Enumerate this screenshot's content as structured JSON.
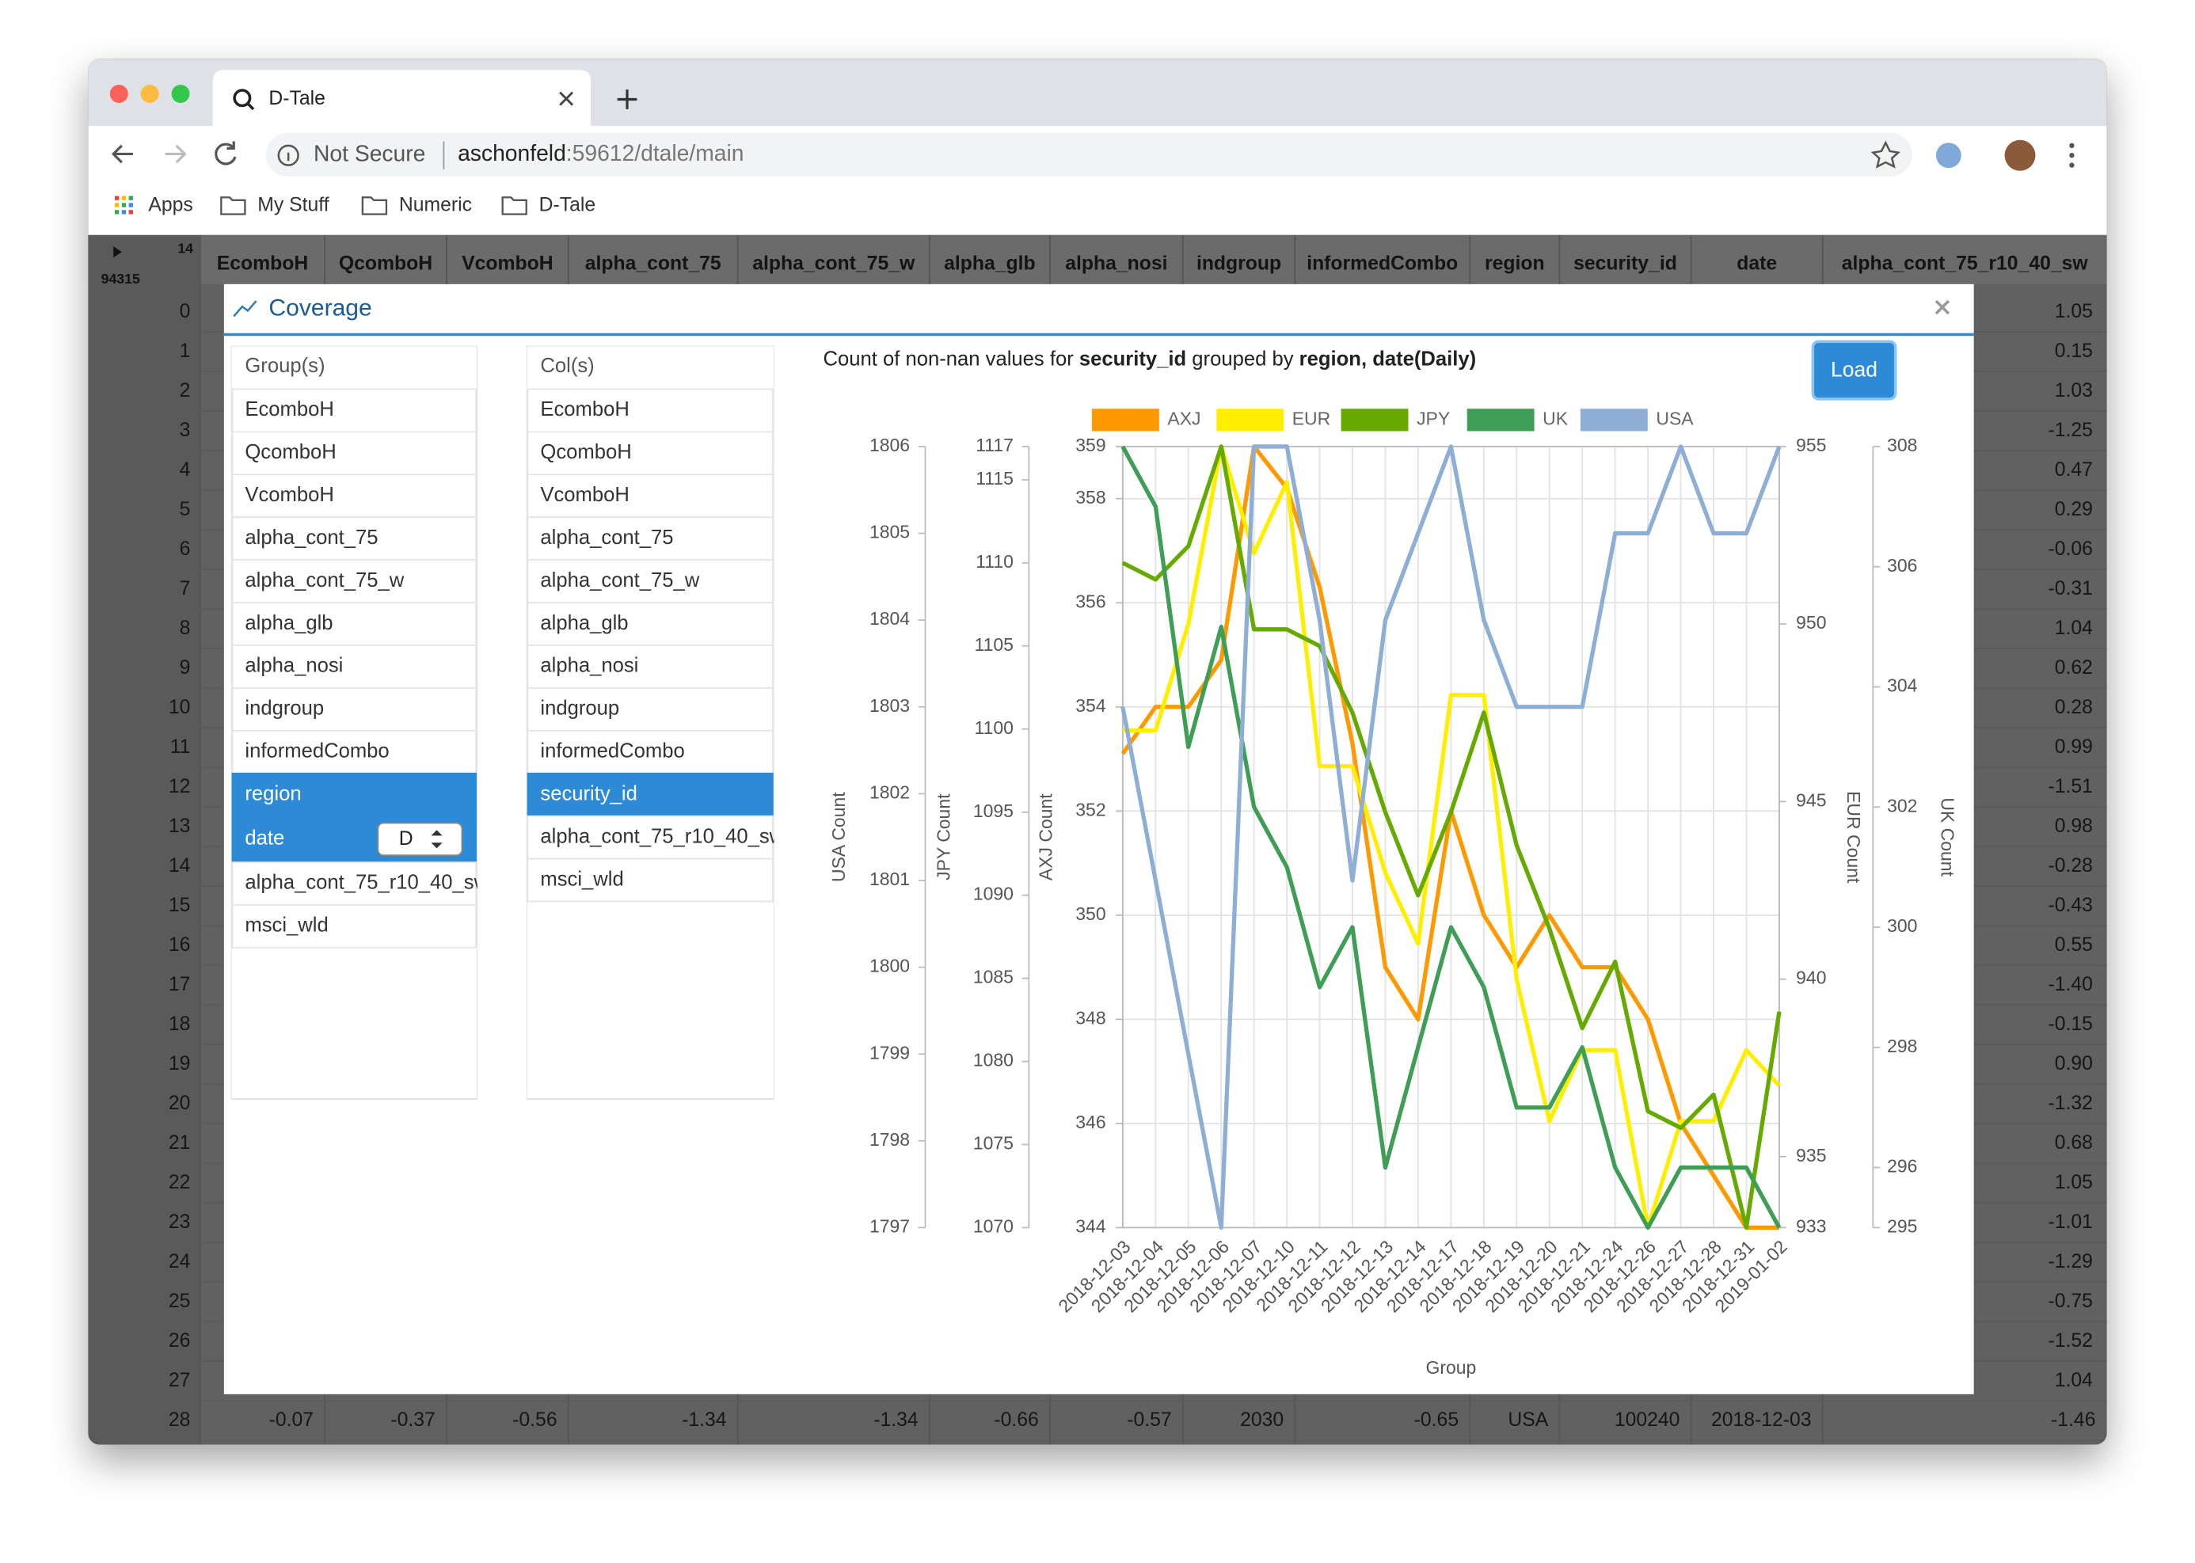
{
  "browser": {
    "tab_title": "D-Tale",
    "security": "Not Secure",
    "url_host": "aschonfeld",
    "url_rest": ":59612/dtale/main",
    "bookmarks": [
      "Apps",
      "My Stuff",
      "Numeric",
      "D-Tale"
    ]
  },
  "table": {
    "corner": [
      "14",
      "94315"
    ],
    "headers": [
      "EcomboH",
      "QcomboH",
      "VcomboH",
      "alpha_cont_75",
      "alpha_cont_75_w",
      "alpha_glb",
      "alpha_nosi",
      "indgroup",
      "informedCombo",
      "region",
      "security_id",
      "date",
      "alpha_cont_75_r10_40_sw"
    ],
    "row_index": [
      0,
      1,
      2,
      3,
      4,
      5,
      6,
      7,
      8,
      9,
      10,
      11,
      12,
      13,
      14,
      15,
      16,
      17,
      18,
      19,
      20,
      21,
      22,
      23,
      24,
      25,
      26,
      27,
      28
    ],
    "last_column": [
      "1.05",
      "0.15",
      "1.03",
      "-1.25",
      "0.47",
      "0.29",
      "-0.06",
      "-0.31",
      "1.04",
      "0.62",
      "0.28",
      "0.99",
      "-1.51",
      "0.98",
      "-0.28",
      "-0.43",
      "0.55",
      "-1.40",
      "-0.15",
      "0.90",
      "-1.32",
      "0.68",
      "1.05",
      "-1.01",
      "-1.29",
      "-0.75",
      "-1.52",
      "1.04"
    ],
    "last_row": [
      "-0.07",
      "-0.37",
      "-0.56",
      "-1.34",
      "-1.34",
      "-0.66",
      "-0.57",
      "2030",
      "-0.65",
      "USA",
      "100240",
      "2018-12-03",
      "-1.46"
    ]
  },
  "modal": {
    "title": "Coverage",
    "groups": {
      "header": "Group(s)",
      "items": [
        "EcomboH",
        "QcomboH",
        "VcomboH",
        "alpha_cont_75",
        "alpha_cont_75_w",
        "alpha_glb",
        "alpha_nosi",
        "indgroup",
        "informedCombo",
        "region",
        "date",
        "alpha_cont_75_r10_40_sw",
        "msci_wld"
      ],
      "selected": [
        "region",
        "date"
      ],
      "date_freq": "D"
    },
    "cols": {
      "header": "Col(s)",
      "items": [
        "EcomboH",
        "QcomboH",
        "VcomboH",
        "alpha_cont_75",
        "alpha_cont_75_w",
        "alpha_glb",
        "alpha_nosi",
        "indgroup",
        "informedCombo",
        "security_id",
        "alpha_cont_75_r10_40_sw",
        "msci_wld"
      ],
      "selected": [
        "security_id"
      ]
    },
    "chart_title": [
      "Count of non-nan values for ",
      "security_id",
      " grouped by ",
      "region, date(Daily)"
    ],
    "load_button": "Load",
    "chart": {
      "type": "line",
      "xlabel": "Group",
      "categories": [
        "2018-12-03",
        "2018-12-04",
        "2018-12-05",
        "2018-12-06",
        "2018-12-07",
        "2018-12-10",
        "2018-12-11",
        "2018-12-12",
        "2018-12-13",
        "2018-12-14",
        "2018-12-17",
        "2018-12-18",
        "2018-12-19",
        "2018-12-20",
        "2018-12-21",
        "2018-12-24",
        "2018-12-26",
        "2018-12-27",
        "2018-12-28",
        "2018-12-31",
        "2019-01-02"
      ],
      "axes": {
        "usa": {
          "label": "USA Count",
          "lim": [
            1797,
            1806
          ],
          "ticks": [
            1797,
            1798,
            1799,
            1800,
            1801,
            1802,
            1803,
            1804,
            1805,
            1806
          ]
        },
        "jpy": {
          "label": "JPY Count",
          "lim": [
            1070,
            1117
          ],
          "ticks": [
            1070,
            1075,
            1080,
            1085,
            1090,
            1095,
            1100,
            1105,
            1110,
            1115,
            1117
          ]
        },
        "axj": {
          "label": "AXJ Count",
          "lim": [
            344,
            359
          ],
          "ticks": [
            344,
            346,
            348,
            350,
            352,
            354,
            356,
            358,
            359
          ]
        },
        "eur": {
          "label": "EUR Count",
          "lim": [
            933,
            955
          ],
          "ticks": [
            933,
            935,
            940,
            945,
            950,
            955
          ]
        },
        "uk": {
          "label": "UK Count",
          "lim": [
            295,
            308
          ],
          "ticks": [
            295,
            296,
            298,
            300,
            302,
            304,
            306,
            308
          ]
        }
      },
      "grid": true,
      "legend": "top",
      "series": [
        {
          "name": "AXJ",
          "color": "#ff9900",
          "axis": "axj",
          "values": [
            353.1,
            354,
            354,
            354.9,
            359,
            358.2,
            356.3,
            353.3,
            349,
            348,
            352,
            350,
            349,
            350,
            349,
            349,
            348,
            346,
            345,
            344,
            344
          ]
        },
        {
          "name": "EUR",
          "color": "#ffee00",
          "axis": "eur",
          "values": [
            947,
            947,
            950,
            955,
            952,
            954,
            946,
            946,
            943,
            941,
            948,
            948,
            940,
            936,
            938,
            938,
            933,
            936,
            936,
            938,
            937
          ]
        },
        {
          "name": "JPY",
          "color": "#66aa00",
          "axis": "jpy",
          "values": [
            1110,
            1109,
            1111,
            1117,
            1106,
            1106,
            1105,
            1101,
            1095,
            1090,
            1095,
            1101,
            1093,
            1088,
            1082,
            1086,
            1077,
            1076,
            1078,
            1070,
            1083
          ]
        },
        {
          "name": "UK",
          "color": "#3f9e55",
          "axis": "uk",
          "values": [
            308,
            307,
            303,
            305,
            302,
            301,
            299,
            300,
            296,
            298,
            300,
            299,
            297,
            297,
            298,
            296,
            295,
            296,
            296,
            296,
            295
          ]
        },
        {
          "name": "USA",
          "color": "#8eaed6",
          "axis": "usa",
          "values": [
            1803,
            1801,
            1799,
            1797,
            1806,
            1806,
            1804,
            1801,
            1804,
            1805,
            1806,
            1804,
            1803,
            1803,
            1803,
            1805,
            1805,
            1806,
            1805,
            1805,
            1806
          ]
        }
      ]
    }
  }
}
